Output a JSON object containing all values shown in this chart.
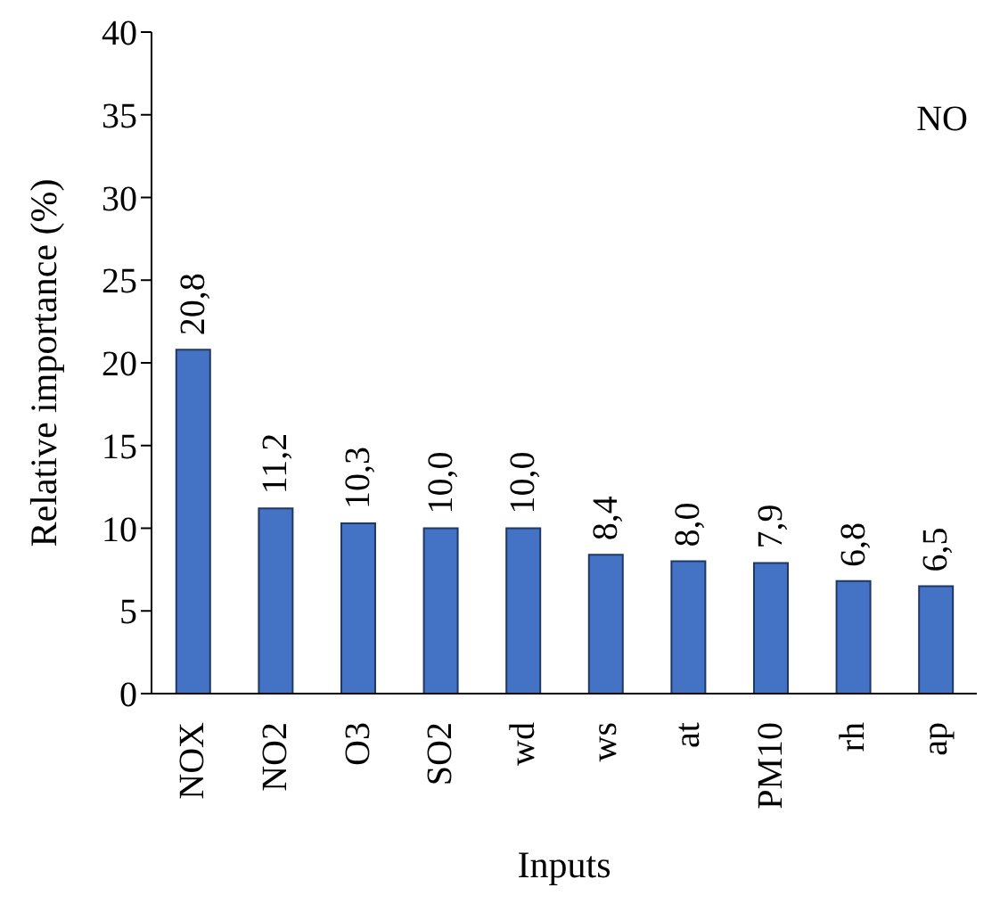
{
  "chart_data": {
    "type": "bar",
    "xlabel": "Inputs",
    "ylabel": "Relative importance (%)",
    "annotations": [
      "NO"
    ],
    "categories": [
      "NOX",
      "NO2",
      "O3",
      "SO2",
      "wd",
      "ws",
      "at",
      "PM10",
      "rh",
      "ap"
    ],
    "values": [
      20.8,
      11.2,
      10.3,
      10.0,
      10.0,
      8.4,
      8.0,
      7.9,
      6.8,
      6.5
    ],
    "value_labels": [
      "20,8",
      "11,2",
      "10,3",
      "10,0",
      "10,0",
      "8,4",
      "8,0",
      "7,9",
      "6,8",
      "6,5"
    ],
    "color": "#4472c4",
    "ylim": [
      0,
      40
    ],
    "yticks": [
      0,
      5,
      10,
      15,
      20,
      25,
      30,
      35,
      40
    ],
    "grid": false
  }
}
